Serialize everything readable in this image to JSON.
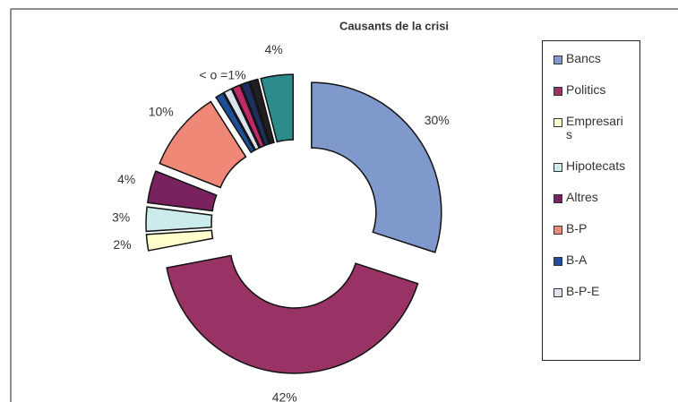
{
  "chart_data": {
    "type": "donut",
    "title": "Causants de la crisi",
    "categories": [
      "Bancs",
      "Politics",
      "Empresaris",
      "Hipotecats",
      "Altres",
      "B-P",
      "B-A",
      "B-P-E",
      null,
      null,
      null,
      null
    ],
    "values": [
      30,
      42,
      2,
      3,
      4,
      10,
      1,
      1,
      1,
      1,
      1,
      4
    ],
    "value_labels": [
      "30%",
      "42%",
      "2%",
      "3%",
      "4%",
      "10%",
      null,
      null,
      null,
      null,
      null,
      "4%"
    ],
    "small_slices_label": "< o =1%",
    "colors": [
      "#7f99cc",
      "#993366",
      "#ffffcc",
      "#ccecec",
      "#7a2260",
      "#f08878",
      "#1f4e99",
      "#dde4f0",
      "#c02a68",
      "#1f2f5f",
      "#202020",
      "#2e8b8b"
    ]
  }
}
